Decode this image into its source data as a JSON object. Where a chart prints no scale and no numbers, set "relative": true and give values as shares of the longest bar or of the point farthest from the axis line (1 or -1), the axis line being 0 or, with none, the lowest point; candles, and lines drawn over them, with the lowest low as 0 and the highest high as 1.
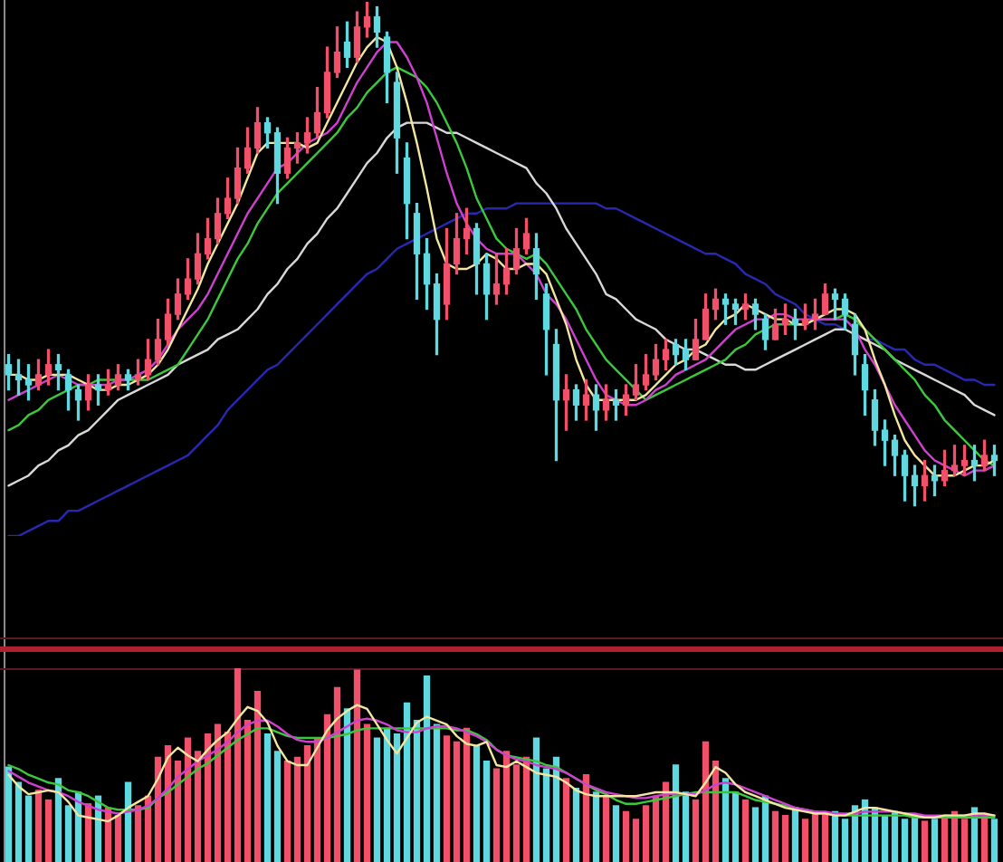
{
  "chart_data": [
    {
      "type": "candlestick",
      "relative": true,
      "marker": "none",
      "categories": [
        null,
        null,
        null,
        null,
        null,
        null,
        null,
        null,
        null,
        null,
        null,
        null,
        null,
        null,
        null,
        null,
        null,
        null,
        null,
        null,
        null,
        null,
        null,
        null,
        null,
        null,
        null,
        null,
        null,
        null,
        null,
        null,
        null,
        null,
        null,
        null,
        null,
        null,
        null,
        null,
        null,
        null,
        null,
        null,
        null,
        null,
        null,
        null,
        null,
        null,
        null,
        null,
        null,
        null,
        null,
        null,
        null,
        null,
        null,
        null,
        null,
        null,
        null,
        null,
        null,
        null,
        null,
        null,
        null,
        null,
        null,
        null,
        null,
        null,
        null,
        null,
        null,
        null,
        null,
        null,
        null,
        null,
        null,
        null,
        null,
        null,
        null,
        null,
        null,
        null,
        null,
        null,
        null,
        null,
        null,
        null,
        null,
        null,
        null,
        null
      ],
      "ohlc": [
        [
          0.28,
          0.3,
          0.23,
          0.26
        ],
        [
          0.26,
          0.29,
          0.22,
          0.25
        ],
        [
          0.25,
          0.28,
          0.21,
          0.24
        ],
        [
          0.24,
          0.29,
          0.23,
          0.26
        ],
        [
          0.26,
          0.31,
          0.24,
          0.28
        ],
        [
          0.28,
          0.3,
          0.23,
          0.27
        ],
        [
          0.26,
          0.27,
          0.19,
          0.23
        ],
        [
          0.23,
          0.24,
          0.17,
          0.21
        ],
        [
          0.21,
          0.26,
          0.19,
          0.24
        ],
        [
          0.24,
          0.26,
          0.2,
          0.23
        ],
        [
          0.23,
          0.27,
          0.22,
          0.24
        ],
        [
          0.24,
          0.28,
          0.23,
          0.26
        ],
        [
          0.26,
          0.27,
          0.23,
          0.25
        ],
        [
          0.25,
          0.29,
          0.24,
          0.26
        ],
        [
          0.26,
          0.33,
          0.25,
          0.29
        ],
        [
          0.29,
          0.37,
          0.28,
          0.33
        ],
        [
          0.33,
          0.41,
          0.32,
          0.38
        ],
        [
          0.38,
          0.45,
          0.37,
          0.42
        ],
        [
          0.42,
          0.49,
          0.41,
          0.45
        ],
        [
          0.45,
          0.54,
          0.44,
          0.5
        ],
        [
          0.5,
          0.57,
          0.49,
          0.53
        ],
        [
          0.53,
          0.61,
          0.52,
          0.58
        ],
        [
          0.58,
          0.65,
          0.57,
          0.61
        ],
        [
          0.61,
          0.71,
          0.6,
          0.67
        ],
        [
          0.67,
          0.75,
          0.66,
          0.71
        ],
        [
          0.71,
          0.79,
          0.7,
          0.76
        ],
        [
          0.76,
          0.77,
          0.71,
          0.74
        ],
        [
          0.74,
          0.75,
          0.6,
          0.66
        ],
        [
          0.66,
          0.73,
          0.65,
          0.71
        ],
        [
          0.71,
          0.74,
          0.68,
          0.72
        ],
        [
          0.72,
          0.77,
          0.7,
          0.74
        ],
        [
          0.74,
          0.83,
          0.73,
          0.78
        ],
        [
          0.78,
          0.91,
          0.77,
          0.86
        ],
        [
          0.86,
          0.95,
          0.85,
          0.9
        ],
        [
          0.92,
          0.96,
          0.87,
          0.89
        ],
        [
          0.89,
          0.98,
          0.88,
          0.95
        ],
        [
          0.95,
          1.0,
          0.93,
          0.97
        ],
        [
          0.97,
          0.99,
          0.91,
          0.94
        ],
        [
          0.93,
          0.94,
          0.8,
          0.86
        ],
        [
          0.84,
          0.86,
          0.66,
          0.73
        ],
        [
          0.69,
          0.72,
          0.53,
          0.6
        ],
        [
          0.58,
          0.6,
          0.41,
          0.5
        ],
        [
          0.5,
          0.53,
          0.39,
          0.44
        ],
        [
          0.44,
          0.46,
          0.3,
          0.37
        ],
        [
          0.4,
          0.55,
          0.37,
          0.48
        ],
        [
          0.48,
          0.58,
          0.46,
          0.53
        ],
        [
          0.53,
          0.59,
          0.5,
          0.55
        ],
        [
          0.55,
          0.56,
          0.42,
          0.48
        ],
        [
          0.48,
          0.5,
          0.37,
          0.42
        ],
        [
          0.42,
          0.5,
          0.4,
          0.44
        ],
        [
          0.44,
          0.51,
          0.42,
          0.47
        ],
        [
          0.47,
          0.55,
          0.46,
          0.51
        ],
        [
          0.51,
          0.57,
          0.5,
          0.54
        ],
        [
          0.51,
          0.54,
          0.41,
          0.46
        ],
        [
          0.42,
          0.44,
          0.26,
          0.35
        ],
        [
          0.32,
          0.35,
          0.09,
          0.21
        ],
        [
          0.21,
          0.26,
          0.15,
          0.23
        ],
        [
          0.23,
          0.24,
          0.17,
          0.2
        ],
        [
          0.2,
          0.25,
          0.17,
          0.22
        ],
        [
          0.22,
          0.24,
          0.15,
          0.19
        ],
        [
          0.19,
          0.24,
          0.17,
          0.21
        ],
        [
          0.21,
          0.23,
          0.17,
          0.2
        ],
        [
          0.2,
          0.24,
          0.18,
          0.22
        ],
        [
          0.22,
          0.28,
          0.21,
          0.24
        ],
        [
          0.24,
          0.3,
          0.23,
          0.26
        ],
        [
          0.26,
          0.32,
          0.25,
          0.29
        ],
        [
          0.29,
          0.33,
          0.27,
          0.31
        ],
        [
          0.32,
          0.33,
          0.28,
          0.3
        ],
        [
          0.31,
          0.33,
          0.27,
          0.29
        ],
        [
          0.29,
          0.37,
          0.29,
          0.33
        ],
        [
          0.33,
          0.42,
          0.33,
          0.39
        ],
        [
          0.39,
          0.43,
          0.37,
          0.41
        ],
        [
          0.41,
          0.42,
          0.36,
          0.4
        ],
        [
          0.4,
          0.41,
          0.36,
          0.39
        ],
        [
          0.39,
          0.42,
          0.37,
          0.4
        ],
        [
          0.4,
          0.41,
          0.35,
          0.38
        ],
        [
          0.37,
          0.38,
          0.31,
          0.33
        ],
        [
          0.33,
          0.39,
          0.33,
          0.36
        ],
        [
          0.36,
          0.4,
          0.34,
          0.37
        ],
        [
          0.37,
          0.39,
          0.33,
          0.36
        ],
        [
          0.36,
          0.4,
          0.35,
          0.37
        ],
        [
          0.37,
          0.41,
          0.35,
          0.38
        ],
        [
          0.38,
          0.44,
          0.38,
          0.42
        ],
        [
          0.42,
          0.43,
          0.37,
          0.41
        ],
        [
          0.41,
          0.42,
          0.35,
          0.38
        ],
        [
          0.36,
          0.38,
          0.26,
          0.3
        ],
        [
          0.28,
          0.3,
          0.18,
          0.23
        ],
        [
          0.21,
          0.23,
          0.12,
          0.15
        ],
        [
          0.15,
          0.17,
          0.08,
          0.13
        ],
        [
          0.13,
          0.14,
          0.06,
          0.1
        ],
        [
          0.1,
          0.11,
          0.01,
          0.06
        ],
        [
          0.06,
          0.08,
          0.0,
          0.04
        ],
        [
          0.04,
          0.09,
          0.01,
          0.06
        ],
        [
          0.06,
          0.08,
          0.02,
          0.05
        ],
        [
          0.05,
          0.11,
          0.04,
          0.07
        ],
        [
          0.07,
          0.12,
          0.06,
          0.08
        ],
        [
          0.08,
          0.12,
          0.06,
          0.09
        ],
        [
          0.09,
          0.12,
          0.05,
          0.08
        ],
        [
          0.08,
          0.13,
          0.07,
          0.1
        ],
        [
          0.1,
          0.12,
          0.06,
          0.09
        ]
      ],
      "colors": [
        "#5fd8e0",
        "#5fd8e0",
        "#5fd8e0",
        "#f0506a",
        "#f0506a",
        "#5fd8e0",
        "#5fd8e0",
        "#5fd8e0",
        "#f0506a",
        "#5fd8e0",
        "#f0506a",
        "#f0506a",
        "#5fd8e0",
        "#f0506a",
        "#f0506a",
        "#f0506a",
        "#f0506a",
        "#f0506a",
        "#f0506a",
        "#f0506a",
        "#f0506a",
        "#f0506a",
        "#f0506a",
        "#f0506a",
        "#f0506a",
        "#f0506a",
        "#5fd8e0",
        "#5fd8e0",
        "#f0506a",
        "#f0506a",
        "#f0506a",
        "#f0506a",
        "#f0506a",
        "#f0506a",
        "#5fd8e0",
        "#f0506a",
        "#f0506a",
        "#5fd8e0",
        "#5fd8e0",
        "#5fd8e0",
        "#5fd8e0",
        "#5fd8e0",
        "#5fd8e0",
        "#5fd8e0",
        "#f0506a",
        "#f0506a",
        "#f0506a",
        "#5fd8e0",
        "#5fd8e0",
        "#f0506a",
        "#f0506a",
        "#f0506a",
        "#f0506a",
        "#5fd8e0",
        "#5fd8e0",
        "#5fd8e0",
        "#f0506a",
        "#5fd8e0",
        "#f0506a",
        "#5fd8e0",
        "#f0506a",
        "#5fd8e0",
        "#f0506a",
        "#f0506a",
        "#f0506a",
        "#f0506a",
        "#f0506a",
        "#5fd8e0",
        "#5fd8e0",
        "#f0506a",
        "#f0506a",
        "#f0506a",
        "#5fd8e0",
        "#5fd8e0",
        "#f0506a",
        "#5fd8e0",
        "#5fd8e0",
        "#f0506a",
        "#f0506a",
        "#5fd8e0",
        "#f0506a",
        "#f0506a",
        "#f0506a",
        "#5fd8e0",
        "#5fd8e0",
        "#5fd8e0",
        "#5fd8e0",
        "#5fd8e0",
        "#5fd8e0",
        "#5fd8e0",
        "#5fd8e0",
        "#5fd8e0",
        "#f0506a",
        "#5fd8e0",
        "#f0506a",
        "#f0506a",
        "#f0506a",
        "#5fd8e0",
        "#f0506a",
        "#5fd8e0"
      ],
      "series": [
        {
          "type": "line",
          "color": "#f2e6a0",
          "values": [
            0.26,
            0.26,
            0.25,
            0.25,
            0.26,
            0.26,
            0.26,
            0.25,
            0.24,
            0.23,
            0.23,
            0.24,
            0.24,
            0.25,
            0.26,
            0.28,
            0.31,
            0.35,
            0.39,
            0.43,
            0.48,
            0.52,
            0.56,
            0.6,
            0.65,
            0.7,
            0.72,
            0.72,
            0.72,
            0.72,
            0.71,
            0.72,
            0.76,
            0.8,
            0.84,
            0.88,
            0.91,
            0.93,
            0.92,
            0.87,
            0.8,
            0.72,
            0.63,
            0.53,
            0.48,
            0.47,
            0.47,
            0.48,
            0.5,
            0.49,
            0.47,
            0.47,
            0.48,
            0.48,
            0.46,
            0.41,
            0.36,
            0.29,
            0.24,
            0.21,
            0.21,
            0.21,
            0.21,
            0.21,
            0.22,
            0.24,
            0.26,
            0.28,
            0.29,
            0.31,
            0.32,
            0.35,
            0.37,
            0.38,
            0.4,
            0.39,
            0.38,
            0.37,
            0.37,
            0.36,
            0.36,
            0.37,
            0.38,
            0.39,
            0.39,
            0.38,
            0.35,
            0.29,
            0.24,
            0.18,
            0.13,
            0.1,
            0.08,
            0.06,
            0.06,
            0.06,
            0.07,
            0.08,
            0.08,
            0.09
          ]
        },
        {
          "type": "line",
          "color": "#d040d0",
          "values": [
            0.21,
            0.22,
            0.23,
            0.24,
            0.25,
            0.26,
            0.25,
            0.24,
            0.24,
            0.24,
            0.24,
            0.25,
            0.25,
            0.26,
            0.27,
            0.29,
            0.32,
            0.35,
            0.37,
            0.39,
            0.42,
            0.46,
            0.5,
            0.54,
            0.58,
            0.61,
            0.64,
            0.67,
            0.68,
            0.7,
            0.72,
            0.73,
            0.74,
            0.76,
            0.8,
            0.84,
            0.87,
            0.9,
            0.92,
            0.92,
            0.89,
            0.85,
            0.8,
            0.73,
            0.66,
            0.6,
            0.56,
            0.53,
            0.51,
            0.5,
            0.5,
            0.5,
            0.48,
            0.46,
            0.42,
            0.4,
            0.37,
            0.33,
            0.29,
            0.25,
            0.22,
            0.21,
            0.2,
            0.2,
            0.21,
            0.23,
            0.24,
            0.26,
            0.27,
            0.28,
            0.29,
            0.31,
            0.33,
            0.35,
            0.36,
            0.37,
            0.37,
            0.38,
            0.38,
            0.37,
            0.37,
            0.37,
            0.37,
            0.37,
            0.37,
            0.35,
            0.31,
            0.28,
            0.24,
            0.2,
            0.17,
            0.14,
            0.11,
            0.09,
            0.08,
            0.07,
            0.06,
            0.07,
            0.07,
            0.08
          ]
        },
        {
          "type": "line",
          "color": "#3cc83c",
          "values": [
            0.15,
            0.16,
            0.18,
            0.19,
            0.21,
            0.22,
            0.23,
            0.24,
            0.24,
            0.25,
            0.25,
            0.25,
            0.25,
            0.25,
            0.25,
            0.26,
            0.27,
            0.28,
            0.31,
            0.34,
            0.37,
            0.41,
            0.45,
            0.49,
            0.52,
            0.56,
            0.59,
            0.62,
            0.64,
            0.66,
            0.68,
            0.7,
            0.72,
            0.74,
            0.77,
            0.79,
            0.82,
            0.84,
            0.86,
            0.87,
            0.86,
            0.85,
            0.83,
            0.8,
            0.76,
            0.72,
            0.67,
            0.61,
            0.57,
            0.53,
            0.51,
            0.5,
            0.49,
            0.5,
            0.48,
            0.45,
            0.42,
            0.39,
            0.35,
            0.32,
            0.29,
            0.27,
            0.25,
            0.23,
            0.21,
            0.22,
            0.23,
            0.24,
            0.25,
            0.26,
            0.27,
            0.28,
            0.29,
            0.31,
            0.32,
            0.34,
            0.35,
            0.36,
            0.36,
            0.36,
            0.36,
            0.37,
            0.37,
            0.37,
            0.38,
            0.37,
            0.35,
            0.33,
            0.31,
            0.29,
            0.27,
            0.25,
            0.22,
            0.2,
            0.17,
            0.15,
            0.13,
            0.11,
            0.09,
            0.08
          ]
        },
        {
          "type": "line",
          "color": "#d8d8d8",
          "values": [
            0.04,
            0.05,
            0.06,
            0.08,
            0.09,
            0.11,
            0.12,
            0.14,
            0.15,
            0.17,
            0.19,
            0.21,
            0.22,
            0.23,
            0.24,
            0.25,
            0.26,
            0.28,
            0.29,
            0.3,
            0.31,
            0.33,
            0.34,
            0.35,
            0.37,
            0.39,
            0.42,
            0.44,
            0.47,
            0.49,
            0.52,
            0.54,
            0.57,
            0.59,
            0.62,
            0.65,
            0.68,
            0.7,
            0.73,
            0.75,
            0.76,
            0.76,
            0.76,
            0.75,
            0.74,
            0.74,
            0.73,
            0.72,
            0.71,
            0.7,
            0.69,
            0.68,
            0.67,
            0.64,
            0.62,
            0.59,
            0.55,
            0.52,
            0.49,
            0.46,
            0.42,
            0.41,
            0.39,
            0.37,
            0.36,
            0.35,
            0.33,
            0.32,
            0.31,
            0.31,
            0.3,
            0.29,
            0.28,
            0.28,
            0.27,
            0.27,
            0.28,
            0.29,
            0.3,
            0.31,
            0.32,
            0.33,
            0.34,
            0.35,
            0.35,
            0.34,
            0.33,
            0.32,
            0.31,
            0.29,
            0.28,
            0.27,
            0.26,
            0.25,
            0.24,
            0.23,
            0.22,
            0.2,
            0.19,
            0.18
          ]
        },
        {
          "type": "line",
          "color": "#2828b0",
          "values": [
            -0.06,
            -0.06,
            -0.05,
            -0.04,
            -0.03,
            -0.03,
            -0.01,
            -0.01,
            0.0,
            0.01,
            0.02,
            0.03,
            0.04,
            0.05,
            0.06,
            0.07,
            0.08,
            0.09,
            0.1,
            0.12,
            0.14,
            0.16,
            0.19,
            0.21,
            0.23,
            0.25,
            0.27,
            0.28,
            0.3,
            0.32,
            0.34,
            0.36,
            0.38,
            0.4,
            0.42,
            0.44,
            0.46,
            0.47,
            0.49,
            0.51,
            0.52,
            0.53,
            0.54,
            0.55,
            0.56,
            0.57,
            0.58,
            0.58,
            0.59,
            0.59,
            0.59,
            0.6,
            0.6,
            0.6,
            0.6,
            0.6,
            0.6,
            0.6,
            0.6,
            0.6,
            0.59,
            0.59,
            0.58,
            0.57,
            0.56,
            0.55,
            0.54,
            0.53,
            0.52,
            0.51,
            0.5,
            0.5,
            0.49,
            0.48,
            0.46,
            0.45,
            0.44,
            0.42,
            0.41,
            0.4,
            0.38,
            0.37,
            0.36,
            0.36,
            0.35,
            null,
            0.33,
            0.33,
            0.32,
            0.31,
            0.31,
            0.29,
            0.28,
            0.28,
            0.27,
            0.26,
            0.25,
            0.25,
            0.24,
            0.24
          ]
        }
      ]
    },
    {
      "type": "bar",
      "relative": true,
      "marker": "none",
      "categories": [
        null,
        null,
        null,
        null,
        null,
        null,
        null,
        null,
        null,
        null,
        null,
        null,
        null,
        null,
        null,
        null,
        null,
        null,
        null,
        null,
        null,
        null,
        null,
        null,
        null,
        null,
        null,
        null,
        null,
        null,
        null,
        null,
        null,
        null,
        null,
        null,
        null,
        null,
        null,
        null,
        null,
        null,
        null,
        null,
        null,
        null,
        null,
        null,
        null,
        null,
        null,
        null,
        null,
        null,
        null,
        null,
        null,
        null,
        null,
        null,
        null,
        null,
        null,
        null,
        null,
        null,
        null,
        null,
        null,
        null,
        null,
        null,
        null,
        null,
        null,
        null,
        null,
        null,
        null,
        null,
        null,
        null,
        null,
        null,
        null,
        null,
        null,
        null,
        null,
        null,
        null,
        null,
        null,
        null,
        null,
        null,
        null,
        null,
        null,
        null
      ],
      "series": [
        {
          "type": "bar",
          "values": [
            0.49,
            0.41,
            0.34,
            0.37,
            0.32,
            0.43,
            0.29,
            0.36,
            0.3,
            0.34,
            0.28,
            0.24,
            0.41,
            0.29,
            0.34,
            0.54,
            0.6,
            0.52,
            0.64,
            0.57,
            0.66,
            0.71,
            0.67,
            1.0,
            0.73,
            0.88,
            0.66,
            0.57,
            0.52,
            0.54,
            0.6,
            0.64,
            0.76,
            0.9,
            0.79,
            0.99,
            0.71,
            0.64,
            0.69,
            0.66,
            0.82,
            0.73,
            0.96,
            0.71,
            0.65,
            0.62,
            0.69,
            0.6,
            0.52,
            0.48,
            0.57,
            0.5,
            0.54,
            0.64,
            0.48,
            0.54,
            0.43,
            0.38,
            0.45,
            0.36,
            0.34,
            0.29,
            0.26,
            0.22,
            0.29,
            0.34,
            0.41,
            0.5,
            0.36,
            0.32,
            0.62,
            0.52,
            0.43,
            0.36,
            0.32,
            0.28,
            0.34,
            0.26,
            0.24,
            0.28,
            0.22,
            0.26,
            0.24,
            0.26,
            0.22,
            0.29,
            0.32,
            0.28,
            0.24,
            0.26,
            0.22,
            0.24,
            0.21,
            0.22,
            0.24,
            0.26,
            0.22,
            0.28,
            0.24,
            0.22
          ],
          "colors": [
            "#5fd8e0",
            "#5fd8e0",
            "#5fd8e0",
            "#f0506a",
            "#f0506a",
            "#5fd8e0",
            "#5fd8e0",
            "#5fd8e0",
            "#f0506a",
            "#5fd8e0",
            "#f0506a",
            "#f0506a",
            "#5fd8e0",
            "#f0506a",
            "#f0506a",
            "#f0506a",
            "#f0506a",
            "#f0506a",
            "#f0506a",
            "#f0506a",
            "#f0506a",
            "#f0506a",
            "#f0506a",
            "#f0506a",
            "#f0506a",
            "#f0506a",
            "#5fd8e0",
            "#5fd8e0",
            "#f0506a",
            "#f0506a",
            "#f0506a",
            "#f0506a",
            "#f0506a",
            "#f0506a",
            "#5fd8e0",
            "#f0506a",
            "#f0506a",
            "#5fd8e0",
            "#5fd8e0",
            "#5fd8e0",
            "#5fd8e0",
            "#5fd8e0",
            "#5fd8e0",
            "#5fd8e0",
            "#f0506a",
            "#f0506a",
            "#f0506a",
            "#5fd8e0",
            "#5fd8e0",
            "#f0506a",
            "#f0506a",
            "#f0506a",
            "#f0506a",
            "#5fd8e0",
            "#5fd8e0",
            "#5fd8e0",
            "#f0506a",
            "#5fd8e0",
            "#f0506a",
            "#5fd8e0",
            "#f0506a",
            "#5fd8e0",
            "#f0506a",
            "#f0506a",
            "#f0506a",
            "#f0506a",
            "#f0506a",
            "#5fd8e0",
            "#5fd8e0",
            "#f0506a",
            "#f0506a",
            "#f0506a",
            "#5fd8e0",
            "#5fd8e0",
            "#f0506a",
            "#5fd8e0",
            "#5fd8e0",
            "#f0506a",
            "#f0506a",
            "#5fd8e0",
            "#f0506a",
            "#f0506a",
            "#f0506a",
            "#5fd8e0",
            "#5fd8e0",
            "#5fd8e0",
            "#5fd8e0",
            "#5fd8e0",
            "#5fd8e0",
            "#5fd8e0",
            "#5fd8e0",
            "#5fd8e0",
            "#f0506a",
            "#5fd8e0",
            "#f0506a",
            "#f0506a",
            "#f0506a",
            "#5fd8e0",
            "#f0506a",
            "#5fd8e0"
          ]
        },
        {
          "type": "line",
          "color": "#f2e6a0",
          "values": [
            0.45,
            0.39,
            0.35,
            0.36,
            0.37,
            0.36,
            0.31,
            0.24,
            0.23,
            0.22,
            0.21,
            0.24,
            0.28,
            0.31,
            0.34,
            0.43,
            0.54,
            0.59,
            0.55,
            0.52,
            0.58,
            0.63,
            0.67,
            0.74,
            0.8,
            0.78,
            0.72,
            0.6,
            0.52,
            0.5,
            0.5,
            0.59,
            0.68,
            0.74,
            0.78,
            0.81,
            0.79,
            0.71,
            0.63,
            0.56,
            0.64,
            0.72,
            0.75,
            0.73,
            0.71,
            0.65,
            0.61,
            0.6,
            0.62,
            0.5,
            0.49,
            0.52,
            0.49,
            0.46,
            0.45,
            0.44,
            0.41,
            0.37,
            0.35,
            0.34,
            0.34,
            0.34,
            0.34,
            0.34,
            0.35,
            0.36,
            0.36,
            0.36,
            0.35,
            0.34,
            0.41,
            0.49,
            0.46,
            0.4,
            0.36,
            0.34,
            0.32,
            0.3,
            0.28,
            0.27,
            0.26,
            0.25,
            0.25,
            0.24,
            0.24,
            0.26,
            0.28,
            0.28,
            0.27,
            0.26,
            0.25,
            0.24,
            0.23,
            0.23,
            0.24,
            0.24,
            0.24,
            0.25,
            0.25,
            0.24
          ]
        },
        {
          "type": "line",
          "color": "#d040d0",
          "values": [
            0.47,
            0.44,
            0.41,
            0.39,
            0.37,
            0.36,
            0.34,
            0.31,
            0.29,
            0.27,
            0.26,
            0.25,
            0.26,
            0.27,
            0.29,
            0.33,
            0.38,
            0.44,
            0.48,
            0.52,
            0.55,
            0.58,
            0.62,
            0.67,
            0.71,
            0.73,
            0.73,
            0.7,
            0.66,
            0.63,
            0.62,
            0.62,
            0.64,
            0.67,
            0.7,
            0.73,
            0.74,
            0.73,
            0.71,
            0.68,
            0.67,
            0.67,
            0.69,
            0.7,
            0.7,
            0.69,
            0.67,
            0.65,
            0.62,
            0.58,
            0.55,
            0.53,
            0.52,
            0.5,
            0.49,
            0.48,
            0.46,
            0.43,
            0.4,
            0.38,
            0.36,
            0.35,
            0.34,
            0.33,
            0.33,
            0.34,
            0.35,
            0.35,
            0.35,
            0.35,
            0.37,
            0.4,
            0.41,
            0.4,
            0.38,
            0.36,
            0.34,
            0.32,
            0.3,
            0.28,
            0.27,
            0.26,
            0.26,
            0.25,
            0.25,
            0.25,
            0.26,
            0.26,
            0.26,
            0.26,
            0.25,
            0.25,
            0.24,
            0.24,
            0.24,
            0.24,
            0.24,
            0.24,
            0.24,
            0.24
          ]
        },
        {
          "type": "line",
          "color": "#3cc83c",
          "values": [
            0.5,
            0.48,
            0.45,
            0.43,
            0.41,
            0.4,
            0.37,
            0.36,
            0.34,
            0.31,
            0.28,
            0.27,
            0.27,
            0.27,
            0.28,
            0.33,
            0.36,
            0.4,
            0.44,
            0.48,
            0.51,
            0.55,
            0.59,
            0.63,
            0.66,
            0.69,
            0.69,
            0.67,
            0.65,
            0.64,
            0.64,
            0.64,
            0.64,
            0.65,
            0.66,
            0.68,
            0.69,
            0.69,
            0.69,
            0.69,
            0.69,
            0.69,
            0.69,
            0.69,
            0.69,
            0.68,
            0.68,
            0.66,
            0.63,
            0.58,
            0.55,
            0.54,
            0.53,
            0.52,
            0.5,
            0.49,
            0.46,
            0.43,
            0.4,
            0.37,
            0.35,
            0.32,
            0.3,
            0.3,
            0.31,
            0.32,
            0.33,
            0.34,
            0.35,
            0.36,
            0.36,
            0.36,
            0.36,
            0.36,
            0.34,
            0.32,
            0.31,
            0.3,
            0.29,
            0.28,
            0.27,
            0.26,
            0.25,
            0.25,
            0.24,
            0.24,
            0.24,
            0.24,
            0.24,
            0.24,
            0.24,
            0.23,
            0.23,
            0.23,
            0.23,
            0.23,
            0.23,
            0.23,
            0.23,
            0.23
          ]
        }
      ]
    }
  ]
}
